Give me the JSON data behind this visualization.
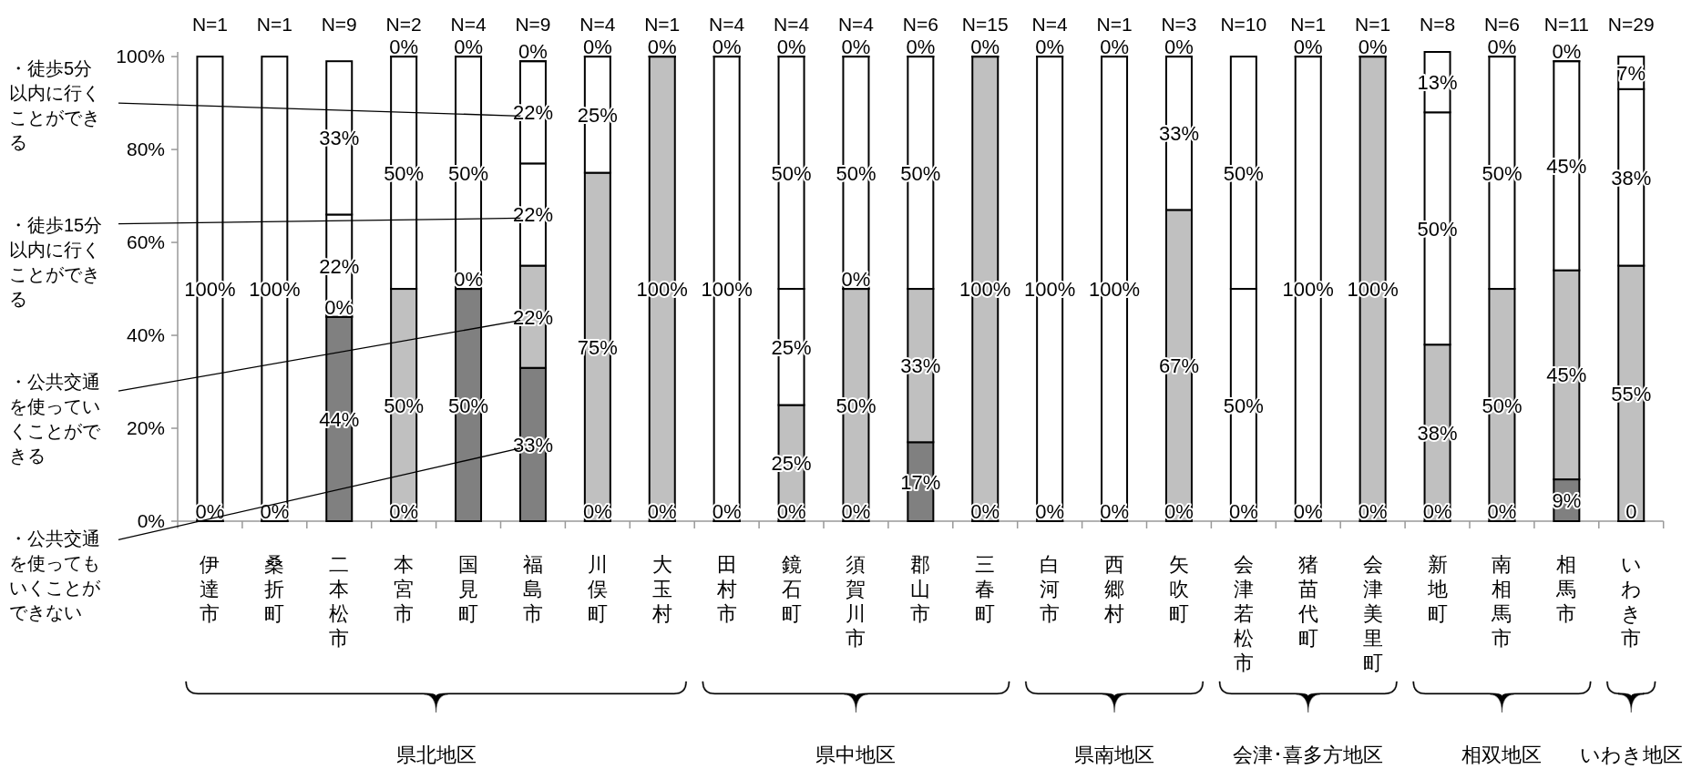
{
  "chart_data": {
    "type": "bar",
    "stacked": true,
    "legend": "left",
    "categories": [
      "伊達市",
      "桑折町",
      "二本松市",
      "本宮市",
      "国見町",
      "福島市",
      "川俣町",
      "大玉村",
      "田村市",
      "鏡石町",
      "須賀川市",
      "郡山市",
      "三春町",
      "白河市",
      "西郷村",
      "矢吹町",
      "会津若松市",
      "猪苗代町",
      "会津美里町",
      "新地町",
      "南相馬市",
      "相馬市",
      "いわき市"
    ],
    "ylim": [
      0,
      101
    ],
    "yticks": [
      {
        "value": 0,
        "label": "0%"
      },
      {
        "value": 20,
        "label": "20%"
      },
      {
        "value": 40,
        "label": "40%"
      },
      {
        "value": 60,
        "label": "60%"
      },
      {
        "value": 80,
        "label": "80%"
      },
      {
        "value": 100,
        "label": "100%"
      }
    ],
    "series": [
      {
        "name": "・公共交通を使ってもいくことができない",
        "color": "#808080",
        "values": [
          0,
          0,
          44,
          0,
          50,
          33,
          0,
          0,
          0,
          0,
          0,
          17,
          0,
          0,
          0,
          0,
          0,
          0,
          0,
          0,
          0,
          9,
          0
        ],
        "value_labels": [
          "0%",
          "0%",
          "44%",
          "0%",
          "50%",
          "33%",
          "0%",
          "0%",
          "0%",
          "0%",
          "0%",
          "17%",
          "0%",
          "0%",
          "0%",
          "0%",
          "0%",
          "0%",
          "0%",
          "0%",
          "0%",
          "9%",
          "0"
        ]
      },
      {
        "name": "・公共交通を使っていくことができる",
        "color": "#c0c0c0",
        "values": [
          0,
          0,
          0,
          50,
          0,
          22,
          75,
          100,
          0,
          25,
          50,
          33,
          100,
          0,
          0,
          67,
          0,
          0,
          100,
          38,
          50,
          45,
          55
        ],
        "value_labels": [
          null,
          null,
          "0%",
          "50%",
          "0%",
          "22%",
          "75%",
          "100%",
          null,
          "25%",
          "50%",
          "33%",
          "100%",
          null,
          null,
          "67%",
          null,
          null,
          "100%",
          "38%",
          "50%",
          "45%",
          "55%"
        ]
      },
      {
        "name": "・徒歩15分以内に行くことができる",
        "color": "#ffffff",
        "values": [
          0,
          0,
          22,
          50,
          50,
          22,
          25,
          0,
          100,
          25,
          0,
          50,
          0,
          100,
          100,
          33,
          50,
          100,
          0,
          50,
          50,
          45,
          38
        ],
        "value_labels": [
          null,
          null,
          "22%",
          "50%",
          "50%",
          "22%",
          "25%",
          "0%",
          "100%",
          "25%",
          "0%",
          "50%",
          "0%",
          "100%",
          "100%",
          "33%",
          "50%",
          "100%",
          "0%",
          "50%",
          "50%",
          "45%",
          "38%"
        ]
      },
      {
        "name": "・徒歩5分以内に行くことができる",
        "color": "#ffffff",
        "values": [
          100,
          100,
          33,
          0,
          0,
          22,
          0,
          0,
          0,
          50,
          50,
          0,
          0,
          0,
          0,
          0,
          50,
          0,
          0,
          13,
          0,
          0,
          7
        ],
        "value_labels": [
          "100%",
          "100%",
          "33%",
          "0%",
          "0%",
          "22%",
          "0%",
          null,
          "0%",
          "50%",
          "50%",
          "0%",
          null,
          "0%",
          "0%",
          "0%",
          "50%",
          "0%",
          null,
          "13%",
          "0%",
          "0%",
          "7%"
        ]
      },
      {
        "color": "#ffffff",
        "values": [
          null,
          null,
          null,
          null,
          null,
          0,
          null,
          null,
          null,
          0,
          0,
          null,
          null,
          null,
          null,
          null,
          null,
          null,
          null,
          null,
          null,
          null,
          null
        ],
        "value_labels": [
          null,
          null,
          null,
          null,
          null,
          "0%",
          null,
          null,
          null,
          "0%",
          "0%",
          null,
          null,
          null,
          null,
          null,
          null,
          null,
          null,
          null,
          null,
          null,
          null
        ]
      }
    ],
    "annotations": [
      "N=1",
      "N=1",
      "N=9",
      "N=2",
      "N=4",
      "N=9",
      "N=4",
      "N=1",
      "N=4",
      "N=4",
      "N=4",
      "N=6",
      "N=15",
      "N=4",
      "N=1",
      "N=3",
      "N=10",
      "N=1",
      "N=1",
      "N=8",
      "N=6",
      "N=11",
      "N=29",
      "県北地区",
      "県中地区",
      "県南地区",
      "会津･喜多方地区",
      "相双地区",
      "いわき地区"
    ]
  }
}
